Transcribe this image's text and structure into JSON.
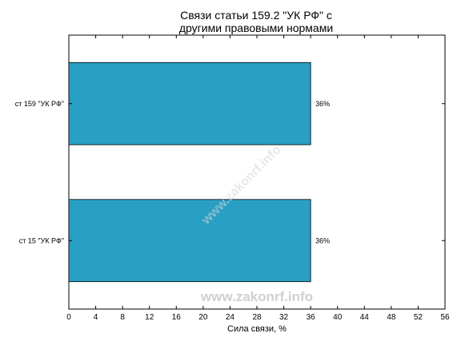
{
  "chart_data": {
    "type": "bar",
    "orientation": "horizontal",
    "title_lines": [
      "Связи статьи 159.2 \"УК РФ\" с",
      "другими правовыми нормами"
    ],
    "categories": [
      "ст 159 \"УК РФ\"",
      "ст 15 \"УК РФ\""
    ],
    "values": [
      36,
      36
    ],
    "value_labels": [
      "36%",
      "36%"
    ],
    "xlabel": "Сила связи, %",
    "ylabel": "",
    "xlim": [
      0,
      56
    ],
    "xticks": [
      0,
      4,
      8,
      12,
      16,
      20,
      24,
      28,
      32,
      36,
      40,
      44,
      48,
      52,
      56
    ],
    "bar_color": "#2a9fc4",
    "grid": false,
    "legend": "none"
  },
  "watermark": {
    "text": "www.zakonrf.info",
    "color": "#c8c8c8"
  }
}
